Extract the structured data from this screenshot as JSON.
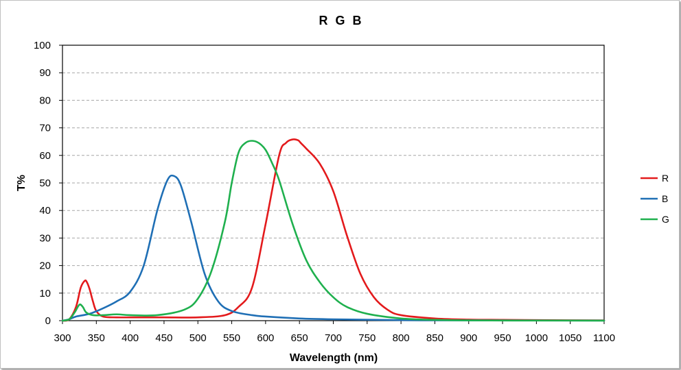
{
  "chart_data": {
    "type": "line",
    "title": "R G B",
    "xlabel": "Wavelength (nm)",
    "ylabel": "T%",
    "xlim": [
      300,
      1100
    ],
    "ylim": [
      0,
      100
    ],
    "xticks": [
      300,
      350,
      400,
      450,
      500,
      550,
      600,
      650,
      700,
      750,
      800,
      850,
      900,
      950,
      1000,
      1050,
      1100
    ],
    "yticks": [
      0,
      10,
      20,
      30,
      40,
      50,
      60,
      70,
      80,
      90,
      100
    ],
    "grid": "horizontal-dashed",
    "legend_position": "right",
    "series": [
      {
        "name": "R",
        "color": "#e31a1c",
        "x": [
          300,
          310,
          320,
          327,
          333,
          336,
          340,
          345,
          350,
          360,
          380,
          400,
          450,
          500,
          540,
          560,
          580,
          600,
          620,
          630,
          640,
          648,
          652,
          660,
          680,
          700,
          720,
          740,
          760,
          780,
          800,
          850,
          900,
          950,
          1000,
          1100
        ],
        "y": [
          0,
          0.5,
          5,
          12,
          14.5,
          14,
          11.5,
          7,
          3.5,
          1.5,
          1.2,
          1.2,
          1.2,
          1.2,
          2,
          5,
          12,
          35,
          60,
          64.5,
          65.8,
          65.5,
          64.5,
          62.5,
          57,
          47,
          31,
          17,
          8.5,
          4,
          2,
          0.8,
          0.4,
          0.3,
          0.2,
          0.1
        ]
      },
      {
        "name": "B",
        "color": "#1f6fb5",
        "x": [
          300,
          310,
          320,
          340,
          360,
          380,
          400,
          420,
          440,
          455,
          465,
          475,
          490,
          510,
          530,
          550,
          580,
          600,
          650,
          700,
          800,
          900,
          1100
        ],
        "y": [
          0,
          0.5,
          1.5,
          2.5,
          4.5,
          7,
          10.5,
          20,
          40,
          51,
          52.5,
          49,
          36,
          17,
          7,
          3.5,
          2,
          1.5,
          0.8,
          0.5,
          0.2,
          0.1,
          0.05
        ]
      },
      {
        "name": "G",
        "color": "#1fb04e",
        "x": [
          300,
          310,
          318,
          325,
          330,
          335,
          345,
          360,
          380,
          400,
          440,
          480,
          500,
          520,
          540,
          550,
          560,
          570,
          580,
          590,
          600,
          610,
          620,
          640,
          660,
          680,
          700,
          720,
          750,
          800,
          850,
          900,
          1000,
          1100
        ],
        "y": [
          0,
          0.5,
          3,
          5.8,
          5,
          3,
          2,
          2,
          2.3,
          2,
          2,
          4,
          8,
          18,
          36,
          50,
          61,
          64.5,
          65.3,
          64.5,
          62,
          57,
          51,
          35,
          22,
          14,
          8.5,
          5,
          2.5,
          0.8,
          0.3,
          0.1,
          0.05,
          0.02
        ]
      }
    ]
  }
}
